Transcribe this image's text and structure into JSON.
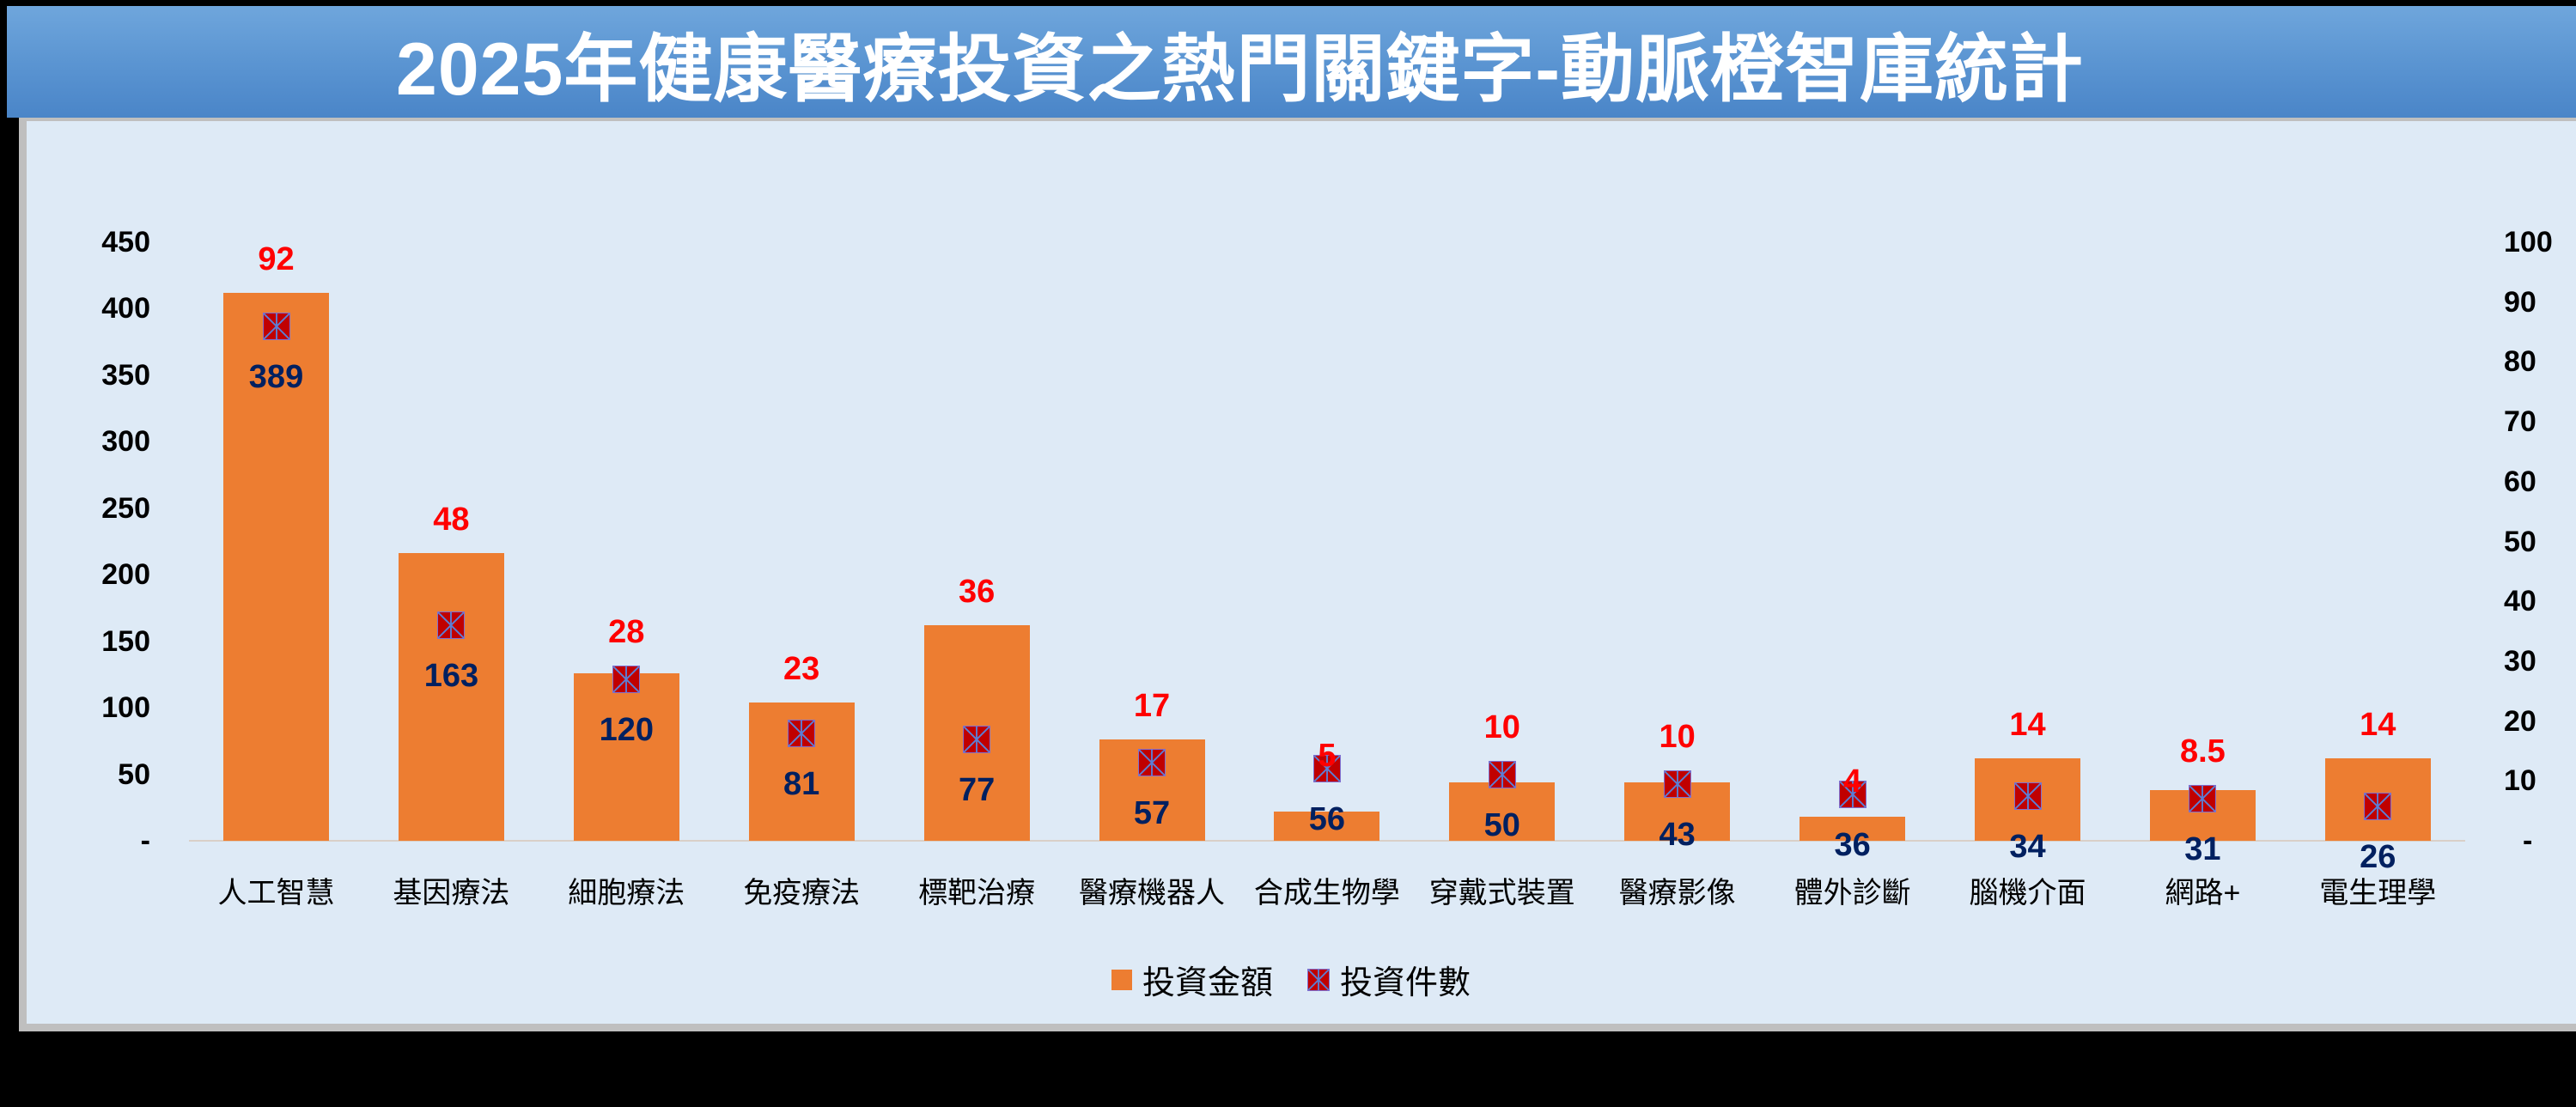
{
  "header": {
    "title": "2025年健康醫療投資之熱門關鍵字-動脈橙智庫統計"
  },
  "colors": {
    "bar": "#ed7d31",
    "marker": "#c00000",
    "amount_label": "#ff0000",
    "count_label": "#002060",
    "title_bg": "#5b95d2",
    "plot_bg": "#deeaf6"
  },
  "legend": {
    "bar_label": "投資金額",
    "marker_label": "投資件數"
  },
  "axes": {
    "left_ticks": [
      "450",
      "400",
      "350",
      "300",
      "250",
      "200",
      "150",
      "100",
      "50",
      "-"
    ],
    "right_ticks": [
      "100",
      "90",
      "80",
      "70",
      "60",
      "50",
      "40",
      "30",
      "20",
      "10",
      "-"
    ]
  },
  "chart_data": {
    "type": "bar",
    "title": "2025年健康醫療投資之熱門關鍵字-動脈橙智庫統計",
    "xlabel": "",
    "ylabel": "",
    "categories": [
      "人工智慧",
      "基因療法",
      "細胞療法",
      "免疫療法",
      "標靶治療",
      "醫療機器人",
      "合成生物學",
      "穿戴式裝置",
      "醫療影像",
      "體外診斷",
      "腦機介面",
      "網路+",
      "電生理學"
    ],
    "series": [
      {
        "name": "投資金額",
        "type": "bar",
        "axis": "left",
        "data_labels": [
          "92",
          "48",
          "28",
          "23",
          "36",
          "17",
          "5",
          "10",
          "10",
          "4",
          "14",
          "8.5",
          "14"
        ],
        "values": [
          92,
          48,
          28,
          23,
          36,
          17,
          5,
          10,
          10,
          4,
          14,
          8.5,
          14
        ],
        "plotted_height_left_axis": [
          412,
          216,
          126,
          104,
          162,
          76,
          22,
          44,
          44,
          18,
          62,
          38,
          62
        ]
      },
      {
        "name": "投資件數",
        "type": "scatter-marker",
        "axis": "right",
        "data_labels": [
          "389",
          "163",
          "120",
          "81",
          "77",
          "57",
          "56",
          "50",
          "43",
          "36",
          "34",
          "31",
          "26"
        ],
        "values": [
          389,
          163,
          120,
          81,
          77,
          57,
          56,
          50,
          43,
          36,
          34,
          31,
          26
        ],
        "plotted_position_right_axis": [
          86,
          36,
          27,
          18,
          17,
          13,
          12,
          11,
          9.5,
          7.8,
          7.5,
          7,
          5.8
        ]
      }
    ],
    "ylim_left": [
      0,
      450
    ],
    "ylim_right": [
      0,
      100
    ],
    "grid": false,
    "legend_position": "bottom"
  }
}
